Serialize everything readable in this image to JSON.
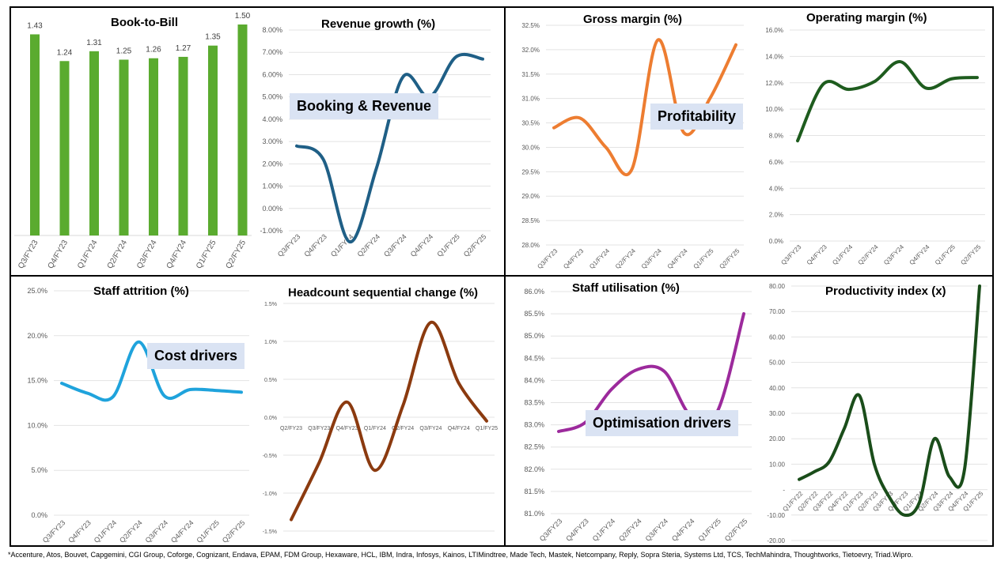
{
  "overlays": [
    "Booking & Revenue",
    "Profitability",
    "Cost drivers",
    "Optimisation drivers"
  ],
  "footer": "*Accenture, Atos, Bouvet, Capgemini, CGI Group, Coforge, Cognizant, Endava, EPAM, FDM Group, Hexaware, HCL, IBM, Indra, Infosys, Kainos, LTIMindtree, Made Tech, Mastek, Netcompany, Reply, Sopra Steria, Systems Ltd, TCS, TechMahindra, Thoughtworks, Tietoevry, Triad.Wipro.",
  "chart_data": [
    {
      "id": "book-to-bill",
      "type": "bar",
      "title": "Book-to-Bill",
      "color": "#5aab2f",
      "categories": [
        "Q3/FY23",
        "Q4/FY23",
        "Q1/FY24",
        "Q2/FY24",
        "Q3/FY24",
        "Q4/FY24",
        "Q1/FY25",
        "Q2/FY25"
      ],
      "values": [
        1.43,
        1.24,
        1.31,
        1.25,
        1.26,
        1.27,
        1.35,
        1.5
      ],
      "data_labels": [
        "1.43",
        "1.24",
        "1.31",
        "1.25",
        "1.26",
        "1.27",
        "1.35",
        "1.50"
      ],
      "ylim": [
        0,
        1.5
      ]
    },
    {
      "id": "revenue-growth",
      "type": "line",
      "title": "Revenue growth (%)",
      "color": "#1f5f86",
      "categories": [
        "Q3/FY23",
        "Q4/FY23",
        "Q1/FY24",
        "Q2/FY24",
        "Q3/FY24",
        "Q4/FY24",
        "Q1/FY25",
        "Q2/FY25"
      ],
      "values": [
        2.8,
        2.2,
        -1.5,
        1.8,
        5.9,
        5.0,
        6.8,
        6.7
      ],
      "ylim": [
        -1,
        8
      ],
      "yticks": [
        "-1.00%",
        "0.00%",
        "1.00%",
        "2.00%",
        "3.00%",
        "4.00%",
        "5.00%",
        "6.00%",
        "7.00%",
        "8.00%"
      ]
    },
    {
      "id": "gross-margin",
      "type": "line",
      "title": "Gross margin (%)",
      "color": "#ed7d31",
      "categories": [
        "Q3/FY23",
        "Q4/FY23",
        "Q1/FY24",
        "Q2/FY24",
        "Q3/FY24",
        "Q4/FY24",
        "Q1/FY25",
        "Q2/FY25"
      ],
      "values": [
        30.4,
        30.6,
        30.0,
        29.55,
        32.2,
        30.3,
        31.0,
        32.1
      ],
      "ylim": [
        28,
        32.5
      ],
      "yticks": [
        "28.0%",
        "28.5%",
        "29.0%",
        "29.5%",
        "30.0%",
        "30.5%",
        "31.0%",
        "31.5%",
        "32.0%",
        "32.5%"
      ]
    },
    {
      "id": "operating-margin",
      "type": "line",
      "title": "Operating margin (%)",
      "color": "#1e5c1e",
      "categories": [
        "Q3/FY23",
        "Q4/FY23",
        "Q1/FY24",
        "Q2/FY24",
        "Q3/FY24",
        "Q4/FY24",
        "Q1/FY25",
        "Q2/FY25"
      ],
      "values": [
        7.6,
        11.9,
        11.5,
        12.1,
        13.6,
        11.6,
        12.3,
        12.4
      ],
      "ylim": [
        0,
        16
      ],
      "yticks": [
        "0.0%",
        "2.0%",
        "4.0%",
        "6.0%",
        "8.0%",
        "10.0%",
        "12.0%",
        "14.0%",
        "16.0%"
      ]
    },
    {
      "id": "staff-attrition",
      "type": "line",
      "title": "Staff attrition (%)",
      "color": "#1fa3dc",
      "categories": [
        "Q3/FY23",
        "Q4/FY23",
        "Q1/FY24",
        "Q2/FY24",
        "Q3/FY24",
        "Q4/FY24",
        "Q1/FY25",
        "Q2/FY25"
      ],
      "values": [
        14.7,
        13.6,
        13.2,
        19.3,
        13.3,
        14.0,
        13.9,
        13.7
      ],
      "ylim": [
        0,
        25
      ],
      "yticks": [
        "0.0%",
        "5.0%",
        "10.0%",
        "15.0%",
        "20.0%",
        "25.0%"
      ]
    },
    {
      "id": "headcount-change",
      "type": "line",
      "title": "Headcount sequential change (%)",
      "color": "#8b3a0f",
      "categories": [
        "Q2/FY23",
        "Q3/FY23",
        "Q4/FY23",
        "Q1/FY24",
        "Q2/FY24",
        "Q3/FY24",
        "Q4/FY24",
        "Q1/FY25"
      ],
      "values": [
        -1.35,
        -0.6,
        0.2,
        -0.7,
        0.15,
        1.25,
        0.45,
        -0.05
      ],
      "ylim": [
        -1.5,
        1.5
      ],
      "yticks": [
        "-1.5%",
        "-1.0%",
        "-0.5%",
        "0.0%",
        "0.5%",
        "1.0%",
        "1.5%"
      ]
    },
    {
      "id": "staff-utilisation",
      "type": "line",
      "title": "Staff utilisation (%)",
      "color": "#9c2a9c",
      "categories": [
        "Q3/FY23",
        "Q4/FY23",
        "Q1/FY24",
        "Q2/FY24",
        "Q3/FY24",
        "Q4/FY24",
        "Q1/FY25",
        "Q2/FY25"
      ],
      "values": [
        82.85,
        83.05,
        83.8,
        84.25,
        84.2,
        83.2,
        83.3,
        85.5
      ],
      "ylim": [
        81,
        86
      ],
      "yticks": [
        "81.0%",
        "81.5%",
        "82.0%",
        "82.5%",
        "83.0%",
        "83.5%",
        "84.0%",
        "84.5%",
        "85.0%",
        "85.5%",
        "86.0%"
      ]
    },
    {
      "id": "productivity-index",
      "type": "line",
      "title": "Productivity index (x)",
      "color": "#1a4d1a",
      "categories": [
        "Q1/FY22",
        "Q2/FY22",
        "Q3/FY22",
        "Q4/FY22",
        "Q1/FY23",
        "Q2/FY23",
        "Q3/FY23",
        "Q4/FY23",
        "Q1/FY24",
        "Q2/FY24",
        "Q3/FY24",
        "Q4/FY24",
        "Q1/FY25"
      ],
      "values": [
        4,
        7,
        11,
        24,
        37,
        10,
        -3,
        -10,
        -5,
        20,
        5,
        8,
        80
      ],
      "ylim": [
        -20,
        80
      ],
      "yticks": [
        "-20.00",
        "-10.00",
        "-",
        "10.00",
        "20.00",
        "30.00",
        "40.00",
        "50.00",
        "60.00",
        "70.00",
        "80.00"
      ]
    }
  ]
}
